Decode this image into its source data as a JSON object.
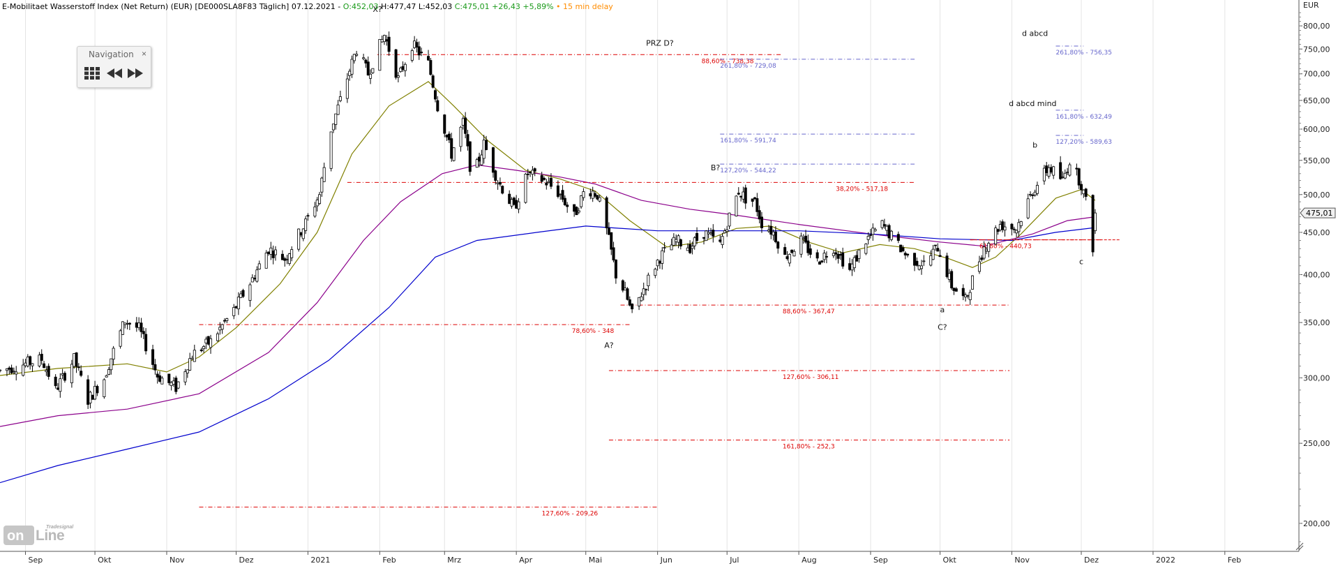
{
  "header": {
    "name": "E-Mobilitaet Wasserstoff Index (Net Return) (EUR) [DE000SLA8F83 Täglich] 07.12.2021 -",
    "open": "O:452,03",
    "high": "H:477,47",
    "low": "L:452,03",
    "close": "C:475,01",
    "change": "+26,43",
    "change_pct": "+5,89%",
    "delay": "15 min delay",
    "delay_bullet": "•"
  },
  "navigation": {
    "title": "Navigation",
    "close_glyph": "×",
    "buttons": [
      "grid-icon",
      "rewind-icon",
      "fast-forward-icon"
    ]
  },
  "logo": {
    "small": "Tradesignal",
    "main_left": "on",
    "main_right": "Line"
  },
  "colors": {
    "up": "#1a9a1a",
    "down": "#cc0000",
    "delay": "#ff8c00",
    "sma_short": "#808000",
    "sma_mid": "#8b008b",
    "sma_long": "#0000cd",
    "fib_red": "#dd0000",
    "fib_blue": "#6666cc",
    "current_price_line": "#dd0000"
  },
  "chart_data": {
    "type": "candlestick",
    "title": "E-Mobilitaet Wasserstoff Index (Net Return) (EUR)",
    "currency_label": "EUR",
    "y_scale": "log",
    "ylim": [
      185,
      840
    ],
    "x_range": [
      "2021-08-21",
      "2022-03-05"
    ],
    "x_axis_months": [
      {
        "label": "Sep",
        "date": "2020-09-01"
      },
      {
        "label": "Okt",
        "date": "2020-10-01"
      },
      {
        "label": "Nov",
        "date": "2020-11-01"
      },
      {
        "label": "Dez",
        "date": "2020-12-01"
      },
      {
        "label": "2021",
        "date": "2021-01-01"
      },
      {
        "label": "Feb",
        "date": "2021-02-01"
      },
      {
        "label": "Mrz",
        "date": "2021-03-01"
      },
      {
        "label": "Apr",
        "date": "2021-04-01"
      },
      {
        "label": "Mai",
        "date": "2021-05-01"
      },
      {
        "label": "Jun",
        "date": "2021-06-01"
      },
      {
        "label": "Jul",
        "date": "2021-07-01"
      },
      {
        "label": "Aug",
        "date": "2021-08-01"
      },
      {
        "label": "Sep",
        "date": "2021-09-01"
      },
      {
        "label": "Okt",
        "date": "2021-10-01"
      },
      {
        "label": "Nov",
        "date": "2021-11-01"
      },
      {
        "label": "Dez",
        "date": "2021-12-01"
      },
      {
        "label": "2022",
        "date": "2022-01-01"
      },
      {
        "label": "Feb",
        "date": "2022-02-01"
      }
    ],
    "y_ticks": [
      {
        "value": 200,
        "label": "200,00"
      },
      {
        "value": 250,
        "label": "250,00"
      },
      {
        "value": 300,
        "label": "300,00"
      },
      {
        "value": 350,
        "label": "350,00"
      },
      {
        "value": 400,
        "label": "400,00"
      },
      {
        "value": 450,
        "label": "450,00"
      },
      {
        "value": 500,
        "label": "500,00"
      },
      {
        "value": 550,
        "label": "550,00"
      },
      {
        "value": 600,
        "label": "600,00"
      },
      {
        "value": 650,
        "label": "650,00"
      },
      {
        "value": 700,
        "label": "700,00"
      },
      {
        "value": 750,
        "label": "750,00"
      },
      {
        "value": 800,
        "label": "800,00"
      }
    ],
    "last_price": {
      "value": 475.01,
      "label": "475,01"
    },
    "price_path": [
      [
        "2020-08-21",
        306
      ],
      [
        "2020-09-08",
        316
      ],
      [
        "2020-09-14",
        290
      ],
      [
        "2020-09-22",
        316
      ],
      [
        "2020-09-28",
        282
      ],
      [
        "2020-10-05",
        300
      ],
      [
        "2020-10-14",
        352
      ],
      [
        "2020-10-20",
        344
      ],
      [
        "2020-10-28",
        302
      ],
      [
        "2020-11-05",
        292
      ],
      [
        "2020-11-12",
        320
      ],
      [
        "2020-11-20",
        332
      ],
      [
        "2020-11-30",
        362
      ],
      [
        "2020-12-08",
        395
      ],
      [
        "2020-12-15",
        430
      ],
      [
        "2020-12-22",
        418
      ],
      [
        "2020-12-31",
        462
      ],
      [
        "2021-01-06",
        500
      ],
      [
        "2021-01-11",
        600
      ],
      [
        "2021-01-15",
        650
      ],
      [
        "2021-01-22",
        750
      ],
      [
        "2021-01-27",
        700
      ],
      [
        "2021-02-03",
        780
      ],
      [
        "2021-02-09",
        690
      ],
      [
        "2021-02-15",
        760
      ],
      [
        "2021-02-22",
        720
      ],
      [
        "2021-02-26",
        640
      ],
      [
        "2021-03-04",
        560
      ],
      [
        "2021-03-09",
        610
      ],
      [
        "2021-03-13",
        520
      ],
      [
        "2021-03-18",
        575
      ],
      [
        "2021-03-24",
        520
      ],
      [
        "2021-03-31",
        480
      ],
      [
        "2021-04-06",
        530
      ],
      [
        "2021-04-13",
        520
      ],
      [
        "2021-04-20",
        500
      ],
      [
        "2021-04-26",
        470
      ],
      [
        "2021-05-01",
        510
      ],
      [
        "2021-05-06",
        500
      ],
      [
        "2021-05-11",
        440
      ],
      [
        "2021-05-14",
        400
      ],
      [
        "2021-05-18",
        380
      ],
      [
        "2021-05-21",
        358
      ],
      [
        "2021-05-27",
        390
      ],
      [
        "2021-06-02",
        420
      ],
      [
        "2021-06-09",
        440
      ],
      [
        "2021-06-15",
        432
      ],
      [
        "2021-06-21",
        450
      ],
      [
        "2021-06-28",
        435
      ],
      [
        "2021-07-02",
        470
      ],
      [
        "2021-07-06",
        505
      ],
      [
        "2021-07-09",
        495
      ],
      [
        "2021-07-13",
        490
      ],
      [
        "2021-07-16",
        462
      ],
      [
        "2021-07-21",
        450
      ],
      [
        "2021-07-26",
        420
      ],
      [
        "2021-08-02",
        440
      ],
      [
        "2021-08-09",
        415
      ],
      [
        "2021-08-16",
        432
      ],
      [
        "2021-08-23",
        405
      ],
      [
        "2021-08-30",
        440
      ],
      [
        "2021-09-06",
        460
      ],
      [
        "2021-09-10",
        445
      ],
      [
        "2021-09-17",
        420
      ],
      [
        "2021-09-24",
        412
      ],
      [
        "2021-09-30",
        432
      ],
      [
        "2021-10-06",
        388
      ],
      [
        "2021-10-12",
        372
      ],
      [
        "2021-10-20",
        432
      ],
      [
        "2021-10-27",
        460
      ],
      [
        "2021-11-03",
        455
      ],
      [
        "2021-11-10",
        505
      ],
      [
        "2021-11-17",
        540
      ],
      [
        "2021-11-23",
        520
      ],
      [
        "2021-11-26",
        550
      ],
      [
        "2021-12-01",
        515
      ],
      [
        "2021-12-03",
        490
      ],
      [
        "2021-12-06",
        432
      ],
      [
        "2021-12-07",
        475
      ]
    ],
    "moving_averages": [
      {
        "color_key": "sma_short",
        "points": [
          [
            "2020-08-21",
            302
          ],
          [
            "2020-09-15",
            308
          ],
          [
            "2020-10-15",
            312
          ],
          [
            "2020-11-01",
            305
          ],
          [
            "2020-11-15",
            318
          ],
          [
            "2020-12-01",
            345
          ],
          [
            "2020-12-20",
            390
          ],
          [
            "2021-01-05",
            450
          ],
          [
            "2021-01-20",
            560
          ],
          [
            "2021-02-05",
            640
          ],
          [
            "2021-02-22",
            685
          ],
          [
            "2021-03-05",
            640
          ],
          [
            "2021-03-20",
            580
          ],
          [
            "2021-04-05",
            535
          ],
          [
            "2021-04-20",
            522
          ],
          [
            "2021-05-05",
            505
          ],
          [
            "2021-05-20",
            465
          ],
          [
            "2021-06-05",
            432
          ],
          [
            "2021-06-20",
            438
          ],
          [
            "2021-07-05",
            455
          ],
          [
            "2021-07-20",
            458
          ],
          [
            "2021-08-05",
            438
          ],
          [
            "2021-08-20",
            425
          ],
          [
            "2021-09-05",
            435
          ],
          [
            "2021-09-20",
            430
          ],
          [
            "2021-10-05",
            418
          ],
          [
            "2021-10-15",
            408
          ],
          [
            "2021-10-25",
            420
          ],
          [
            "2021-11-05",
            448
          ],
          [
            "2021-11-20",
            495
          ],
          [
            "2021-12-01",
            507
          ],
          [
            "2021-12-07",
            492
          ]
        ]
      },
      {
        "color_key": "sma_mid",
        "points": [
          [
            "2020-08-21",
            262
          ],
          [
            "2020-09-15",
            270
          ],
          [
            "2020-10-15",
            275
          ],
          [
            "2020-11-15",
            287
          ],
          [
            "2020-12-15",
            322
          ],
          [
            "2021-01-05",
            370
          ],
          [
            "2021-01-25",
            440
          ],
          [
            "2021-02-10",
            490
          ],
          [
            "2021-02-28",
            530
          ],
          [
            "2021-03-15",
            543
          ],
          [
            "2021-04-01",
            535
          ],
          [
            "2021-04-20",
            525
          ],
          [
            "2021-05-05",
            515
          ],
          [
            "2021-05-25",
            492
          ],
          [
            "2021-06-15",
            480
          ],
          [
            "2021-07-05",
            472
          ],
          [
            "2021-08-01",
            460
          ],
          [
            "2021-09-01",
            448
          ],
          [
            "2021-10-01",
            438
          ],
          [
            "2021-10-20",
            433
          ],
          [
            "2021-11-10",
            448
          ],
          [
            "2021-11-25",
            465
          ],
          [
            "2021-12-07",
            470
          ]
        ]
      },
      {
        "color_key": "sma_long",
        "points": [
          [
            "2020-08-21",
            224
          ],
          [
            "2020-09-15",
            235
          ],
          [
            "2020-10-15",
            246
          ],
          [
            "2020-11-15",
            258
          ],
          [
            "2020-12-15",
            283
          ],
          [
            "2021-01-10",
            315
          ],
          [
            "2021-02-05",
            365
          ],
          [
            "2021-02-25",
            420
          ],
          [
            "2021-03-15",
            440
          ],
          [
            "2021-04-10",
            450
          ],
          [
            "2021-05-01",
            458
          ],
          [
            "2021-06-01",
            452
          ],
          [
            "2021-07-01",
            452
          ],
          [
            "2021-08-01",
            452
          ],
          [
            "2021-09-01",
            448
          ],
          [
            "2021-10-01",
            442
          ],
          [
            "2021-11-01",
            440
          ],
          [
            "2021-11-20",
            450
          ],
          [
            "2021-12-07",
            456
          ]
        ]
      }
    ],
    "fib_levels": [
      {
        "value": 738.38,
        "label": "88,60% - 738,38",
        "from": "2021-01-31",
        "to": "2021-07-25",
        "color_key": "fib_red",
        "label_at": "2021-06-20"
      },
      {
        "value": 729.08,
        "label": "261,80% - 729,08",
        "from": "2021-06-28",
        "to": "2021-09-20",
        "color_key": "fib_blue",
        "label_at": "2021-06-28"
      },
      {
        "value": 591.74,
        "label": "161,80% - 591,74",
        "from": "2021-06-28",
        "to": "2021-09-20",
        "color_key": "fib_blue",
        "label_at": "2021-06-28"
      },
      {
        "value": 544.22,
        "label": "127,20% - 544,22",
        "from": "2021-06-28",
        "to": "2021-09-20",
        "color_key": "fib_blue",
        "label_at": "2021-06-28"
      },
      {
        "value": 517.18,
        "label": "38,20% - 517,18",
        "from": "2021-01-18",
        "to": "2021-09-20",
        "color_key": "fib_red",
        "label_at": "2021-08-17"
      },
      {
        "value": 367.47,
        "label": "88,60% - 367,47",
        "from": "2021-05-16",
        "to": "2021-10-31",
        "color_key": "fib_red",
        "label_at": "2021-07-25"
      },
      {
        "value": 348.0,
        "label": "78,60% - 348",
        "from": "2020-11-15",
        "to": "2021-05-20",
        "color_key": "fib_red",
        "label_at": "2021-04-25"
      },
      {
        "value": 306.11,
        "label": "127,60% - 306,11",
        "from": "2021-05-11",
        "to": "2021-10-31",
        "color_key": "fib_red",
        "label_at": "2021-07-25"
      },
      {
        "value": 252.3,
        "label": "161,80% - 252,3",
        "from": "2021-05-11",
        "to": "2021-10-31",
        "color_key": "fib_red",
        "label_at": "2021-07-25"
      },
      {
        "value": 209.26,
        "label": "127,60% - 209,26",
        "from": "2020-11-15",
        "to": "2021-06-01",
        "color_key": "fib_red",
        "label_at": "2021-04-12"
      },
      {
        "value": 756.35,
        "label": "261,80% - 756,35",
        "from": "2021-11-20",
        "to": "2021-12-02",
        "color_key": "fib_blue",
        "label_at": "2021-11-20"
      },
      {
        "value": 632.49,
        "label": "161,80% - 632,49",
        "from": "2021-11-20",
        "to": "2021-12-02",
        "color_key": "fib_blue",
        "label_at": "2021-11-20"
      },
      {
        "value": 589.63,
        "label": "127,20% - 589,63",
        "from": "2021-11-20",
        "to": "2021-12-02",
        "color_key": "fib_blue",
        "label_at": "2021-11-20"
      },
      {
        "value": 440.73,
        "label": "61,80% - 440,73",
        "from": "2021-10-14",
        "to": "2021-12-10",
        "color_key": "fib_red",
        "label_at": "2021-10-18"
      }
    ],
    "wave_labels": [
      {
        "text": "X?",
        "date": "2021-01-31",
        "value": 832
      },
      {
        "text": "PRZ D?",
        "date": "2021-06-02",
        "value": 757
      },
      {
        "text": "B?",
        "date": "2021-06-26",
        "value": 535
      },
      {
        "text": "A?",
        "date": "2021-05-11",
        "value": 326
      },
      {
        "text": "a",
        "date": "2021-10-02",
        "value": 360
      },
      {
        "text": "C?",
        "date": "2021-10-02",
        "value": 343
      },
      {
        "text": "b",
        "date": "2021-11-11",
        "value": 570
      },
      {
        "text": "c",
        "date": "2021-12-01",
        "value": 412
      },
      {
        "text": "d abcd",
        "date": "2021-11-11",
        "value": 778
      },
      {
        "text": "d abcd mind",
        "date": "2021-11-10",
        "value": 640
      }
    ]
  }
}
